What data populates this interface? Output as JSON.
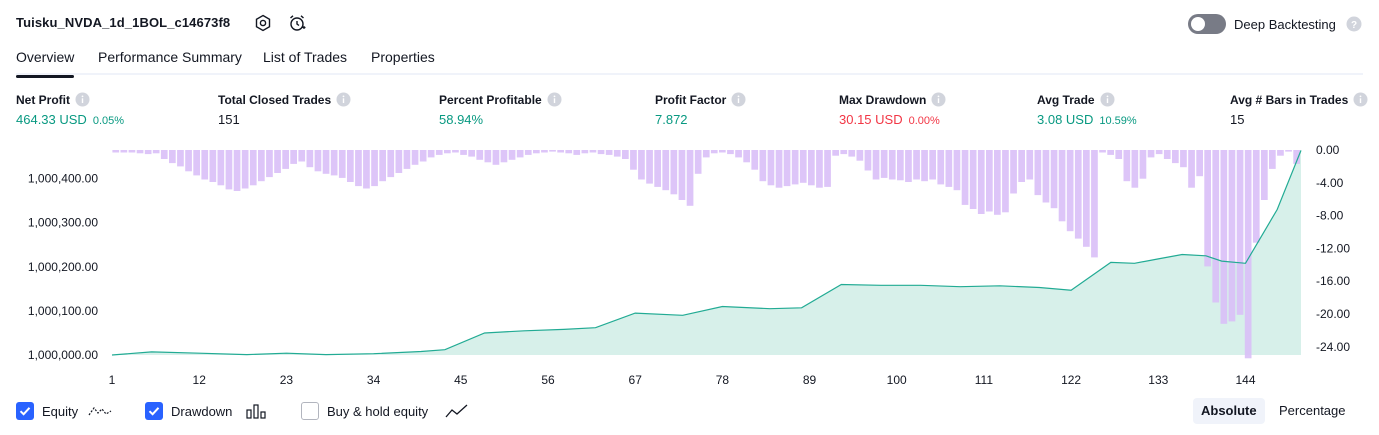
{
  "header": {
    "strategy_name": "Tuisku_NVDA_1d_1BOL_c14673f8",
    "deep_backtesting_label": "Deep Backtesting"
  },
  "tabs": [
    {
      "label": "Overview",
      "active": true
    },
    {
      "label": "Performance Summary"
    },
    {
      "label": "List of Trades"
    },
    {
      "label": "Properties"
    }
  ],
  "stats": {
    "net_profit": {
      "label": "Net Profit",
      "value": "464.33 USD",
      "pct": "0.05%"
    },
    "total_closed_trades": {
      "label": "Total Closed Trades",
      "value": "151"
    },
    "percent_profitable": {
      "label": "Percent Profitable",
      "value": "58.94%"
    },
    "profit_factor": {
      "label": "Profit Factor",
      "value": "7.872"
    },
    "max_drawdown": {
      "label": "Max Drawdown",
      "value": "30.15 USD",
      "pct": "0.00%"
    },
    "avg_trade": {
      "label": "Avg Trade",
      "value": "3.08 USD",
      "pct": "10.59%"
    },
    "avg_bars": {
      "label": "Avg # Bars in Trades",
      "value": "15"
    }
  },
  "colors": {
    "profit": "#089981",
    "loss": "#f23645",
    "accent": "#2962ff",
    "equity_line": "#22ab94",
    "equity_fill": "#d7f0ea",
    "drawdown_bar": "#d9bff7"
  },
  "chart_data": {
    "type": "area",
    "x_ticks": [
      "1",
      "12",
      "23",
      "34",
      "45",
      "56",
      "67",
      "78",
      "89",
      "100",
      "111",
      "122",
      "133",
      "144"
    ],
    "left_axis_ticks": [
      "1,000,400.00",
      "1,000,300.00",
      "1,000,200.00",
      "1,000,100.00",
      "1,000,000.00"
    ],
    "right_axis_ticks": [
      "0.00",
      "-4.00",
      "-8.00",
      "-12.00",
      "-16.00",
      "-20.00",
      "-24.00"
    ],
    "left_ylim": [
      1000000,
      1000465
    ],
    "right_ylim": [
      -25,
      0
    ],
    "xlim": [
      1,
      151
    ],
    "series": [
      {
        "name": "Equity",
        "axis": "left",
        "x": [
          1,
          6,
          12,
          18,
          23,
          28,
          34,
          40,
          43,
          48,
          53,
          58,
          62,
          67,
          73,
          78,
          84,
          88,
          93,
          98,
          103,
          108,
          113,
          118,
          122,
          127,
          130,
          133,
          136,
          139,
          141,
          144,
          148,
          151
        ],
        "values": [
          1000000,
          1000007,
          1000004,
          1000001,
          1000004,
          1000001,
          1000003,
          1000008,
          1000012,
          1000050,
          1000055,
          1000058,
          1000062,
          1000095,
          1000090,
          1000110,
          1000105,
          1000107,
          1000160,
          1000158,
          1000158,
          1000155,
          1000157,
          1000153,
          1000147,
          1000210,
          1000208,
          1000218,
          1000228,
          1000225,
          1000213,
          1000208,
          1000330,
          1000464
        ]
      },
      {
        "name": "Drawdown",
        "type": "bar",
        "axis": "right",
        "values": [
          -0.3,
          -0.3,
          -0.3,
          -0.4,
          -0.5,
          -0.4,
          -1.1,
          -1.6,
          -2.0,
          -2.6,
          -3.1,
          -3.6,
          -3.9,
          -4.3,
          -4.8,
          -5.0,
          -4.7,
          -4.3,
          -3.8,
          -3.3,
          -2.8,
          -2.3,
          -1.7,
          -1.4,
          -2.1,
          -2.6,
          -2.9,
          -3.1,
          -3.4,
          -3.9,
          -4.4,
          -4.7,
          -4.4,
          -3.8,
          -3.3,
          -2.8,
          -2.3,
          -1.8,
          -1.4,
          -0.9,
          -0.6,
          -0.4,
          -0.3,
          -0.6,
          -0.8,
          -1.2,
          -1.5,
          -1.8,
          -1.5,
          -1.2,
          -0.9,
          -0.6,
          -0.4,
          -0.3,
          -0.2,
          -0.3,
          -0.4,
          -0.6,
          -0.4,
          -0.3,
          -0.5,
          -0.6,
          -0.8,
          -1.1,
          -2.4,
          -3.6,
          -4.1,
          -4.5,
          -4.9,
          -5.4,
          -6.1,
          -6.8,
          -2.9,
          -0.9,
          -0.4,
          -0.3,
          -0.5,
          -0.9,
          -1.5,
          -2.4,
          -3.8,
          -4.3,
          -4.6,
          -4.4,
          -4.2,
          -4.0,
          -4.3,
          -4.6,
          -4.5,
          -0.7,
          -0.5,
          -0.8,
          -1.3,
          -2.5,
          -3.6,
          -3.4,
          -3.6,
          -3.7,
          -3.9,
          -3.6,
          -3.8,
          -3.6,
          -4.2,
          -4.5,
          -4.9,
          -6.7,
          -7.2,
          -7.8,
          -7.5,
          -7.9,
          -7.6,
          -5.3,
          -3.9,
          -3.6,
          -5.5,
          -6.4,
          -7.1,
          -8.7,
          -9.9,
          -10.8,
          -11.8,
          -13.1,
          -0.3,
          -0.6,
          -1.1,
          -3.8,
          -4.6,
          -3.5,
          -0.9,
          -0.5,
          -1.1,
          -1.6,
          -2.1,
          -4.6,
          -3.2,
          -14.2,
          -18.6,
          -21.2,
          -20.9,
          -20.1,
          -25.4,
          -11.3,
          -6.1,
          -2.3,
          -0.7,
          -0.2,
          -1.7
        ]
      }
    ]
  },
  "legend": {
    "equity_label": "Equity",
    "drawdown_label": "Drawdown",
    "buy_hold_label": "Buy & hold equity",
    "equity_checked": true,
    "drawdown_checked": true,
    "buy_hold_checked": false
  },
  "view_modes": {
    "absolute_label": "Absolute",
    "percentage_label": "Percentage",
    "active": "Absolute"
  }
}
